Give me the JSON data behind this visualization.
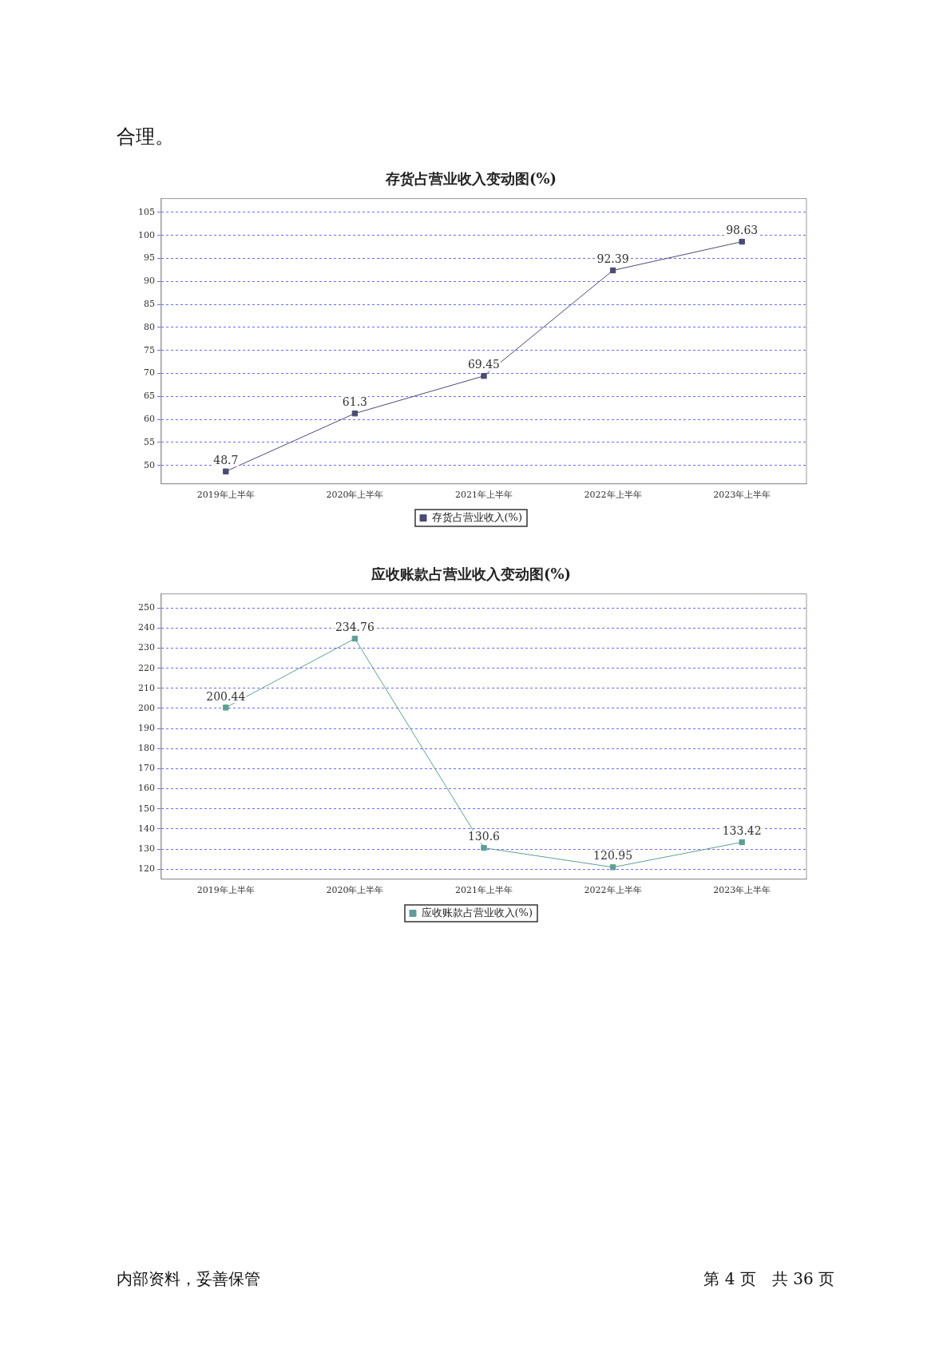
{
  "chart_data": [
    {
      "type": "line",
      "title": "存货占营业收入变动图(%)",
      "annotations": [
        "合理。"
      ],
      "categories": [
        "2019年上半年",
        "2020年上半年",
        "2021年上半年",
        "2022年上半年",
        "2023年上半年"
      ],
      "series": [
        {
          "name": "存货占营业收入(%)",
          "color": "#4b4b75",
          "values": [
            48.7,
            61.3,
            69.45,
            92.39,
            98.63
          ]
        }
      ],
      "ylim": [
        46,
        108
      ],
      "yticks": [
        50,
        55,
        60,
        65,
        70,
        75,
        80,
        85,
        90,
        95,
        100,
        105
      ],
      "grid": "y",
      "legend": "bottom",
      "marker": "square",
      "line_style": "solid",
      "data_labels": true
    },
    {
      "type": "line",
      "title": "应收账款占营业收入变动图(%)",
      "annotations": [
        "内部资料，妥善保管",
        "第 4 页　共 36 页"
      ],
      "categories": [
        "2019年上半年",
        "2020年上半年",
        "2021年上半年",
        "2022年上半年",
        "2023年上半年"
      ],
      "series": [
        {
          "name": "应收账款占营业收入(%)",
          "color": "#5f9e96",
          "values": [
            200.44,
            234.76,
            130.6,
            120.95,
            133.42
          ]
        }
      ],
      "ylim": [
        115,
        257
      ],
      "yticks": [
        120,
        130,
        140,
        150,
        160,
        170,
        180,
        190,
        200,
        210,
        220,
        230,
        240,
        250
      ],
      "grid": "y",
      "legend": "bottom",
      "marker": "square",
      "line_style": "solid",
      "data_labels": true
    }
  ]
}
